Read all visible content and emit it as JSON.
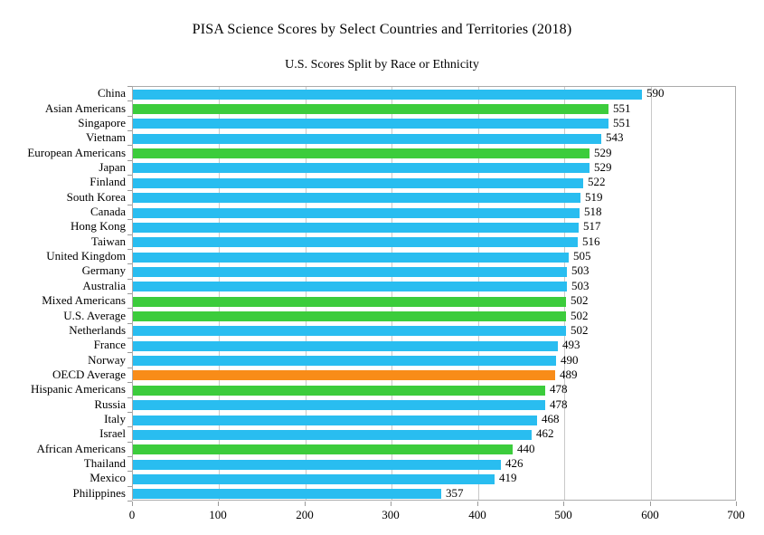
{
  "title": "PISA Science Scores by Select Countries and Territories (2018)",
  "subtitle": "U.S. Scores Split by Race or Ethnicity",
  "chart_data": {
    "type": "bar",
    "orientation": "horizontal",
    "title": "PISA Science Scores by Select Countries and Territories (2018)",
    "subtitle": "U.S. Scores Split by Race or Ethnicity",
    "xlabel": "",
    "ylabel": "",
    "xlim": [
      0,
      700
    ],
    "x_ticks": [
      0,
      100,
      200,
      300,
      400,
      500,
      600,
      700
    ],
    "grid": true,
    "legend": false,
    "categories": [
      "China",
      "Asian Americans",
      "Singapore",
      "Vietnam",
      "European Americans",
      "Japan",
      "Finland",
      "South Korea",
      "Canada",
      "Hong Kong",
      "Taiwan",
      "United Kingdom",
      "Germany",
      "Australia",
      "Mixed Americans",
      "U.S. Average",
      "Netherlands",
      "France",
      "Norway",
      "OECD Average",
      "Hispanic Americans",
      "Russia",
      "Italy",
      "Israel",
      "African Americans",
      "Thailand",
      "Mexico",
      "Philippines"
    ],
    "values": [
      590,
      551,
      551,
      543,
      529,
      529,
      522,
      519,
      518,
      517,
      516,
      505,
      503,
      503,
      502,
      502,
      502,
      493,
      490,
      489,
      478,
      478,
      468,
      462,
      440,
      426,
      419,
      357
    ],
    "groups": [
      "country",
      "us_group",
      "country",
      "country",
      "us_group",
      "country",
      "country",
      "country",
      "country",
      "country",
      "country",
      "country",
      "country",
      "country",
      "us_group",
      "us_group",
      "country",
      "country",
      "country",
      "oecd",
      "us_group",
      "country",
      "country",
      "country",
      "us_group",
      "country",
      "country",
      "country"
    ],
    "colors": {
      "country": "#29bdf0",
      "us_group": "#3ccc3c",
      "oecd": "#f88c18"
    },
    "grid_color": "#c9c9c9",
    "border_color": "#ababab",
    "tick_color": "#9a9a9a"
  }
}
